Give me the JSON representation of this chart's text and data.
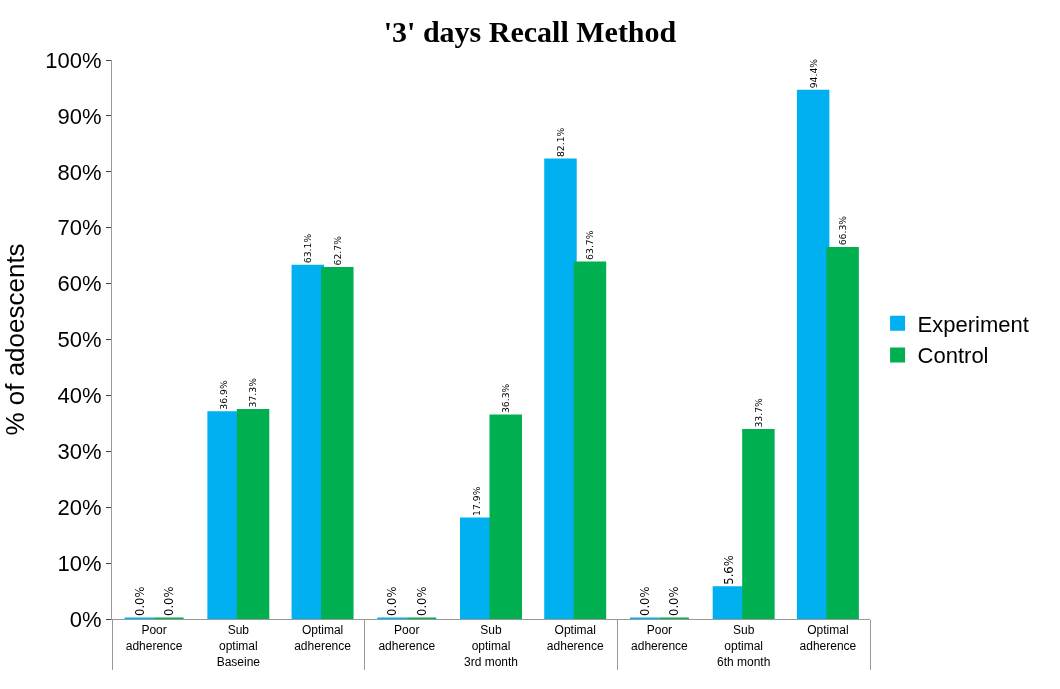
{
  "chart_data": {
    "type": "bar",
    "title": "'3' days Recall Method",
    "ylabel": "% of adoescents",
    "categories": [
      "Poor adherence",
      "Sub optimal",
      "Optimal adherence",
      "Poor adherence",
      "Sub optimal",
      "Optimal adherence",
      "Poor adherence",
      "Sub optimal",
      "Optimal adherence"
    ],
    "annotations": [
      "Baseine",
      "3rd month",
      "6th month"
    ],
    "series": [
      {
        "name": "Experiment",
        "color": "#00b0f0",
        "values": [
          0,
          36.9,
          63.1,
          0,
          17.9,
          82.1,
          0,
          5.6,
          94.4
        ],
        "value_labels": [
          "0.0%",
          "36.9%",
          "63.1%",
          "0.0%",
          "17.9%",
          "82.1%",
          "0.0%",
          "5.6%",
          "94.4%"
        ]
      },
      {
        "name": "Control",
        "color": "#00b050",
        "values": [
          0,
          37.3,
          62.7,
          0,
          36.3,
          63.7,
          0,
          33.7,
          66.3
        ],
        "value_labels": [
          "0.0%",
          "37.3%",
          "62.7%",
          "0.0%",
          "36.3%",
          "63.7%",
          "0.0%",
          "33.7%",
          "66.3%"
        ]
      }
    ],
    "ylim": [
      0,
      100
    ],
    "yticks": [
      {
        "value": 0,
        "label": "0%"
      },
      {
        "value": 10,
        "label": "10%"
      },
      {
        "value": 20,
        "label": "20%"
      },
      {
        "value": 30,
        "label": "30%"
      },
      {
        "value": 40,
        "label": "40%"
      },
      {
        "value": 50,
        "label": "50%"
      },
      {
        "value": 60,
        "label": "60%"
      },
      {
        "value": 70,
        "label": "70%"
      },
      {
        "value": 80,
        "label": "80%"
      },
      {
        "value": 90,
        "label": "90%"
      },
      {
        "value": 100,
        "label": "100%"
      }
    ],
    "grid": false,
    "legend": "right"
  }
}
